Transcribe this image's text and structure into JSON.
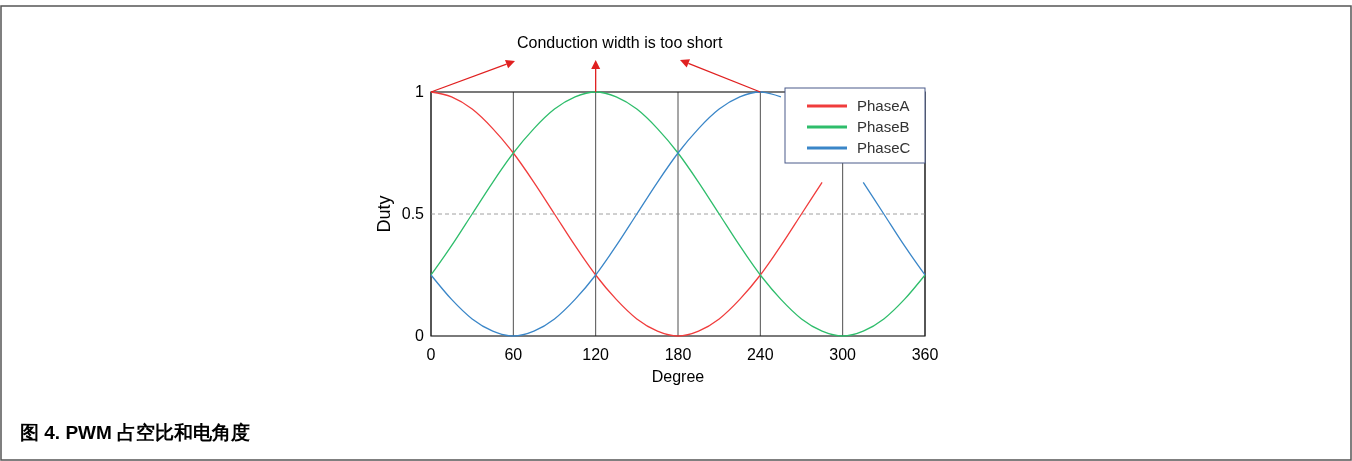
{
  "chart_data": {
    "type": "line",
    "xlabel": "Degree",
    "ylabel": "Duty",
    "x": [
      0,
      15,
      30,
      45,
      60,
      75,
      90,
      105,
      120,
      135,
      150,
      165,
      180,
      195,
      210,
      225,
      240,
      255,
      270,
      285,
      300,
      315,
      330,
      345,
      360
    ],
    "series": [
      {
        "name": "PhaseA",
        "color": "#f03c3c",
        "values": [
          1,
          0.98,
          0.93,
          0.85,
          0.75,
          0.63,
          0.5,
          0.37,
          0.25,
          0.15,
          0.07,
          0.02,
          0,
          0.02,
          0.07,
          0.15,
          0.25,
          0.37,
          0.5,
          0.63,
          null,
          null,
          null,
          null,
          null
        ]
      },
      {
        "name": "PhaseB",
        "color": "#2ebd6b",
        "values": [
          0.25,
          0.37,
          0.5,
          0.63,
          0.75,
          0.85,
          0.93,
          0.98,
          1,
          0.98,
          0.93,
          0.85,
          0.75,
          0.63,
          0.5,
          0.37,
          0.25,
          0.15,
          0.07,
          0.02,
          0,
          0.02,
          0.07,
          0.15,
          0.25
        ]
      },
      {
        "name": "PhaseC",
        "color": "#3a86c8",
        "values": [
          0.25,
          0.15,
          0.07,
          0.02,
          0,
          0.02,
          0.07,
          0.15,
          0.25,
          0.37,
          0.5,
          0.63,
          0.75,
          0.85,
          0.93,
          0.98,
          1,
          0.98,
          null,
          null,
          null,
          0.63,
          0.5,
          0.37,
          0.25
        ]
      }
    ],
    "xlim": [
      0,
      360
    ],
    "xticks": [
      0,
      60,
      120,
      180,
      240,
      300,
      360
    ],
    "ylim": [
      0,
      1
    ],
    "yticks": [
      0,
      0.5,
      1
    ],
    "grid": "x",
    "ref_lines": [
      {
        "axis": "y",
        "value": 0.5,
        "color": "#888888",
        "line_style": "dashed"
      }
    ],
    "legend": "top right",
    "annotations": [
      {
        "text": "Conduction width is too short",
        "x": 120,
        "y": 1
      },
      "图 4. PWM 占空比和电角度"
    ]
  }
}
